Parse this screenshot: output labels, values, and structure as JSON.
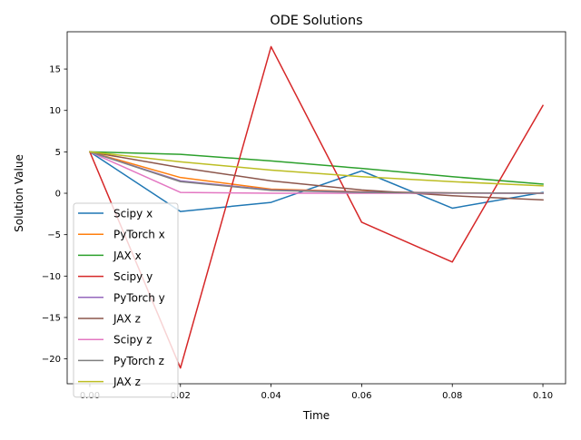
{
  "chart_data": {
    "type": "line",
    "title": "ODE Solutions",
    "xlabel": "Time",
    "ylabel": "Solution Value",
    "xlim": [
      -0.005,
      0.105
    ],
    "ylim": [
      -23.0,
      19.5
    ],
    "xticks": [
      0.0,
      0.02,
      0.04,
      0.06,
      0.08,
      0.1
    ],
    "xtick_labels": [
      "0.00",
      "0.02",
      "0.04",
      "0.06",
      "0.08",
      "0.10"
    ],
    "yticks": [
      15,
      10,
      5,
      0,
      -5,
      -10,
      -15,
      -20
    ],
    "ytick_labels": [
      "15",
      "10",
      "5",
      "0",
      "−5",
      "−10",
      "−15",
      "−20"
    ],
    "grid": false,
    "legend_position": "lower left",
    "x": [
      0.0,
      0.02,
      0.04,
      0.06,
      0.08,
      0.1
    ],
    "series": [
      {
        "name": "Scipy x",
        "color": "#1f77b4",
        "values": [
          5.0,
          -2.2,
          -1.1,
          2.7,
          -1.8,
          0.1
        ]
      },
      {
        "name": "PyTorch x",
        "color": "#ff7f0e",
        "values": [
          5.0,
          1.9,
          0.5,
          0.2,
          0.05,
          0.0
        ]
      },
      {
        "name": "JAX x",
        "color": "#2ca02c",
        "values": [
          5.0,
          4.7,
          3.9,
          3.0,
          2.0,
          1.1
        ]
      },
      {
        "name": "Scipy y",
        "color": "#d62728",
        "values": [
          5.0,
          -21.1,
          17.7,
          -3.5,
          -8.3,
          10.6
        ]
      },
      {
        "name": "PyTorch y",
        "color": "#9467bd",
        "values": [
          5.0,
          1.5,
          0.4,
          0.15,
          0.04,
          0.0
        ]
      },
      {
        "name": "JAX z",
        "color": "#8c564b",
        "values": [
          5.0,
          3.1,
          1.5,
          0.4,
          -0.3,
          -0.8
        ]
      },
      {
        "name": "Scipy z",
        "color": "#e377c2",
        "values": [
          5.0,
          0.1,
          0.0,
          0.0,
          0.0,
          0.0
        ]
      },
      {
        "name": "PyTorch z",
        "color": "#7f7f7f",
        "values": [
          5.0,
          1.4,
          0.35,
          0.1,
          0.03,
          0.0
        ]
      },
      {
        "name": "JAX z",
        "color": "#bcbd22",
        "values": [
          5.0,
          3.8,
          2.8,
          2.0,
          1.4,
          0.9
        ]
      }
    ]
  }
}
